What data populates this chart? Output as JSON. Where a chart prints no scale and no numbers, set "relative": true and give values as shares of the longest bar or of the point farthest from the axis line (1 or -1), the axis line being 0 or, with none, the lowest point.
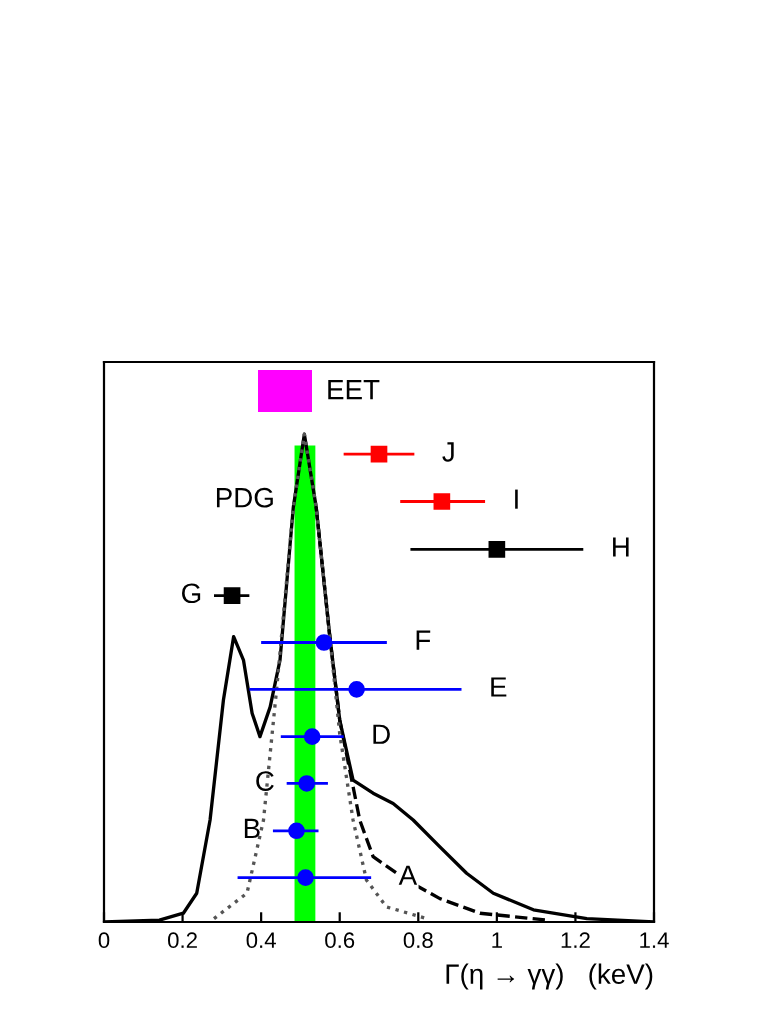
{
  "chart_data": {
    "type": "line",
    "relative": true,
    "xlabel": "Γ(η → γγ)   (keV)",
    "xlim": [
      0,
      1.4
    ],
    "xticks": [
      0,
      0.2,
      0.4,
      0.6,
      0.8,
      1,
      1.2,
      1.4
    ],
    "tick_labels": "x",
    "grid": false,
    "legend": false,
    "series": [
      {
        "color": "#000000",
        "line_style": "solid",
        "x": [
          0,
          0.141,
          0.202,
          0.236,
          0.27,
          0.304,
          0.33,
          0.355,
          0.377,
          0.397,
          0.423,
          0.448,
          0.482,
          0.51,
          0.54,
          0.574,
          0.6,
          0.634,
          0.685,
          0.736,
          0.787,
          0.855,
          0.923,
          0.991,
          1.093,
          1.229,
          1.4
        ],
        "values": [
          0,
          0.004,
          0.018,
          0.059,
          0.209,
          0.455,
          0.585,
          0.537,
          0.428,
          0.38,
          0.441,
          0.537,
          0.851,
          1,
          0.851,
          0.591,
          0.414,
          0.291,
          0.264,
          0.243,
          0.209,
          0.154,
          0.1,
          0.059,
          0.025,
          0.007,
          0
        ]
      },
      {
        "color": "#000000",
        "line_style": "dashed",
        "x": [
          0.54,
          0.574,
          0.6,
          0.651,
          0.685,
          0.77,
          0.855,
          0.957,
          1.127
        ],
        "values": [
          0.851,
          0.591,
          0.414,
          0.209,
          0.134,
          0.086,
          0.048,
          0.018,
          0.004
        ]
      },
      {
        "color": "#555555",
        "line_style": "dotted",
        "x": [
          0.28,
          0.364,
          0.406,
          0.44,
          0.482,
          0.51,
          0.54,
          0.574,
          0.6,
          0.634,
          0.668,
          0.719,
          0.821
        ],
        "values": [
          0.007,
          0.059,
          0.209,
          0.482,
          0.851,
          1,
          0.851,
          0.591,
          0.386,
          0.209,
          0.086,
          0.031,
          0.007
        ]
      },
      {
        "type": "scatter",
        "marker": "circle",
        "color": "#0000ff",
        "x": [
          0.513
        ],
        "values": [
          0.091
        ],
        "xerrors": [
          [
            0.34,
            0.68
          ]
        ]
      },
      {
        "type": "scatter",
        "marker": "circle",
        "color": "#0000ff",
        "x": [
          0.49
        ],
        "values": [
          0.187
        ],
        "xerrors": [
          [
            0.43,
            0.546
          ]
        ]
      },
      {
        "type": "scatter",
        "marker": "circle",
        "color": "#0000ff",
        "x": [
          0.516
        ],
        "values": [
          0.284
        ],
        "xerrors": [
          [
            0.465,
            0.57
          ]
        ]
      },
      {
        "type": "scatter",
        "marker": "circle",
        "color": "#0000ff",
        "x": [
          0.53
        ],
        "values": [
          0.38
        ],
        "xerrors": [
          [
            0.45,
            0.61
          ]
        ]
      },
      {
        "type": "scatter",
        "marker": "circle",
        "color": "#0000ff",
        "x": [
          0.643
        ],
        "values": [
          0.477
        ],
        "xerrors": [
          [
            0.37,
            0.91
          ]
        ]
      },
      {
        "type": "scatter",
        "marker": "circle",
        "color": "#0000ff",
        "x": [
          0.56
        ],
        "values": [
          0.573
        ],
        "xerrors": [
          [
            0.4,
            0.72
          ]
        ]
      },
      {
        "type": "scatter",
        "marker": "square",
        "color": "#000000",
        "x": [
          0.326
        ],
        "values": [
          0.669
        ],
        "xerrors": [
          [
            0.28,
            0.37
          ]
        ]
      },
      {
        "type": "scatter",
        "marker": "square",
        "color": "#000000",
        "x": [
          1.0
        ],
        "values": [
          0.764
        ],
        "xerrors": [
          [
            0.78,
            1.22
          ]
        ]
      },
      {
        "type": "scatter",
        "marker": "square",
        "color": "#ff0000",
        "x": [
          0.86
        ],
        "values": [
          0.862
        ],
        "xerrors": [
          [
            0.754,
            0.97
          ]
        ]
      },
      {
        "type": "scatter",
        "marker": "square",
        "color": "#ff0000",
        "x": [
          0.7
        ],
        "values": [
          0.959
        ],
        "xerrors": [
          [
            0.61,
            0.79
          ]
        ]
      }
    ],
    "bands": [
      {
        "axis": "x",
        "from": 0.485,
        "to": 0.538,
        "label": "PDG",
        "color": "#00ff00"
      }
    ],
    "annotations": [
      "EET",
      "A",
      "B",
      "C",
      "D",
      "E",
      "F",
      "G",
      "H",
      "I",
      "J"
    ]
  }
}
